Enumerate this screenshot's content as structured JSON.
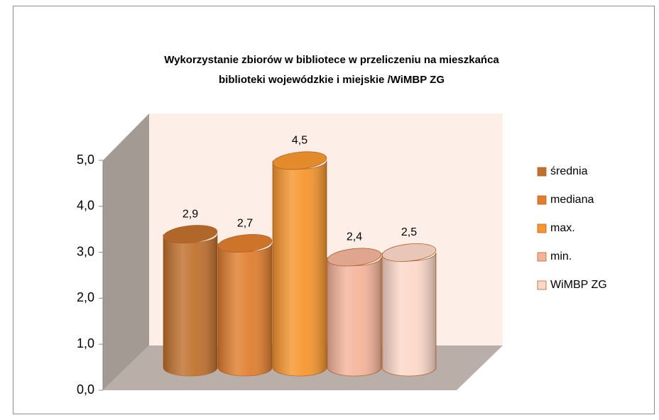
{
  "chart_data": {
    "type": "bar",
    "title": [
      "Wykorzystanie zbiorów w bibliotece w przeliczeniu na mieszkańca",
      "biblioteki wojewódzkie i miejskie  /WiMBP ZG"
    ],
    "series": [
      {
        "name": "średnia",
        "color": "#c0702e",
        "values": [
          2.9
        ],
        "value_labels": [
          "2,9"
        ]
      },
      {
        "name": "mediana",
        "color": "#e07e2e",
        "values": [
          2.7
        ],
        "value_labels": [
          "2,7"
        ]
      },
      {
        "name": "max.",
        "color": "#f7962f",
        "values": [
          4.5
        ],
        "value_labels": [
          "4,5"
        ]
      },
      {
        "name": "min.",
        "color": "#f4b49b",
        "values": [
          2.4
        ],
        "value_labels": [
          "2,4"
        ]
      },
      {
        "name": "WiMBP ZG",
        "color": "#fcd8c8",
        "values": [
          2.5
        ],
        "value_labels": [
          "2,5"
        ]
      }
    ],
    "ylim": [
      0,
      5
    ],
    "yticks": [
      {
        "value": 0,
        "label": "0,0"
      },
      {
        "value": 1,
        "label": "1,0"
      },
      {
        "value": 2,
        "label": "2,0"
      },
      {
        "value": 3,
        "label": "3,0"
      },
      {
        "value": 4,
        "label": "4,0"
      },
      {
        "value": 5,
        "label": "5,0"
      }
    ],
    "legend": "right"
  }
}
